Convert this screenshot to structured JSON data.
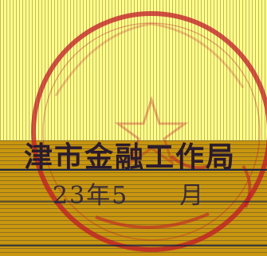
{
  "document": {
    "issuer_line": "津市金融工作局",
    "date_line": "23年5　　月"
  },
  "colors": {
    "paper_yellow": "#ffff88",
    "paper_ochre": "#c8960f",
    "seal_red": "#c0182a",
    "ink": "#2e1c30"
  }
}
